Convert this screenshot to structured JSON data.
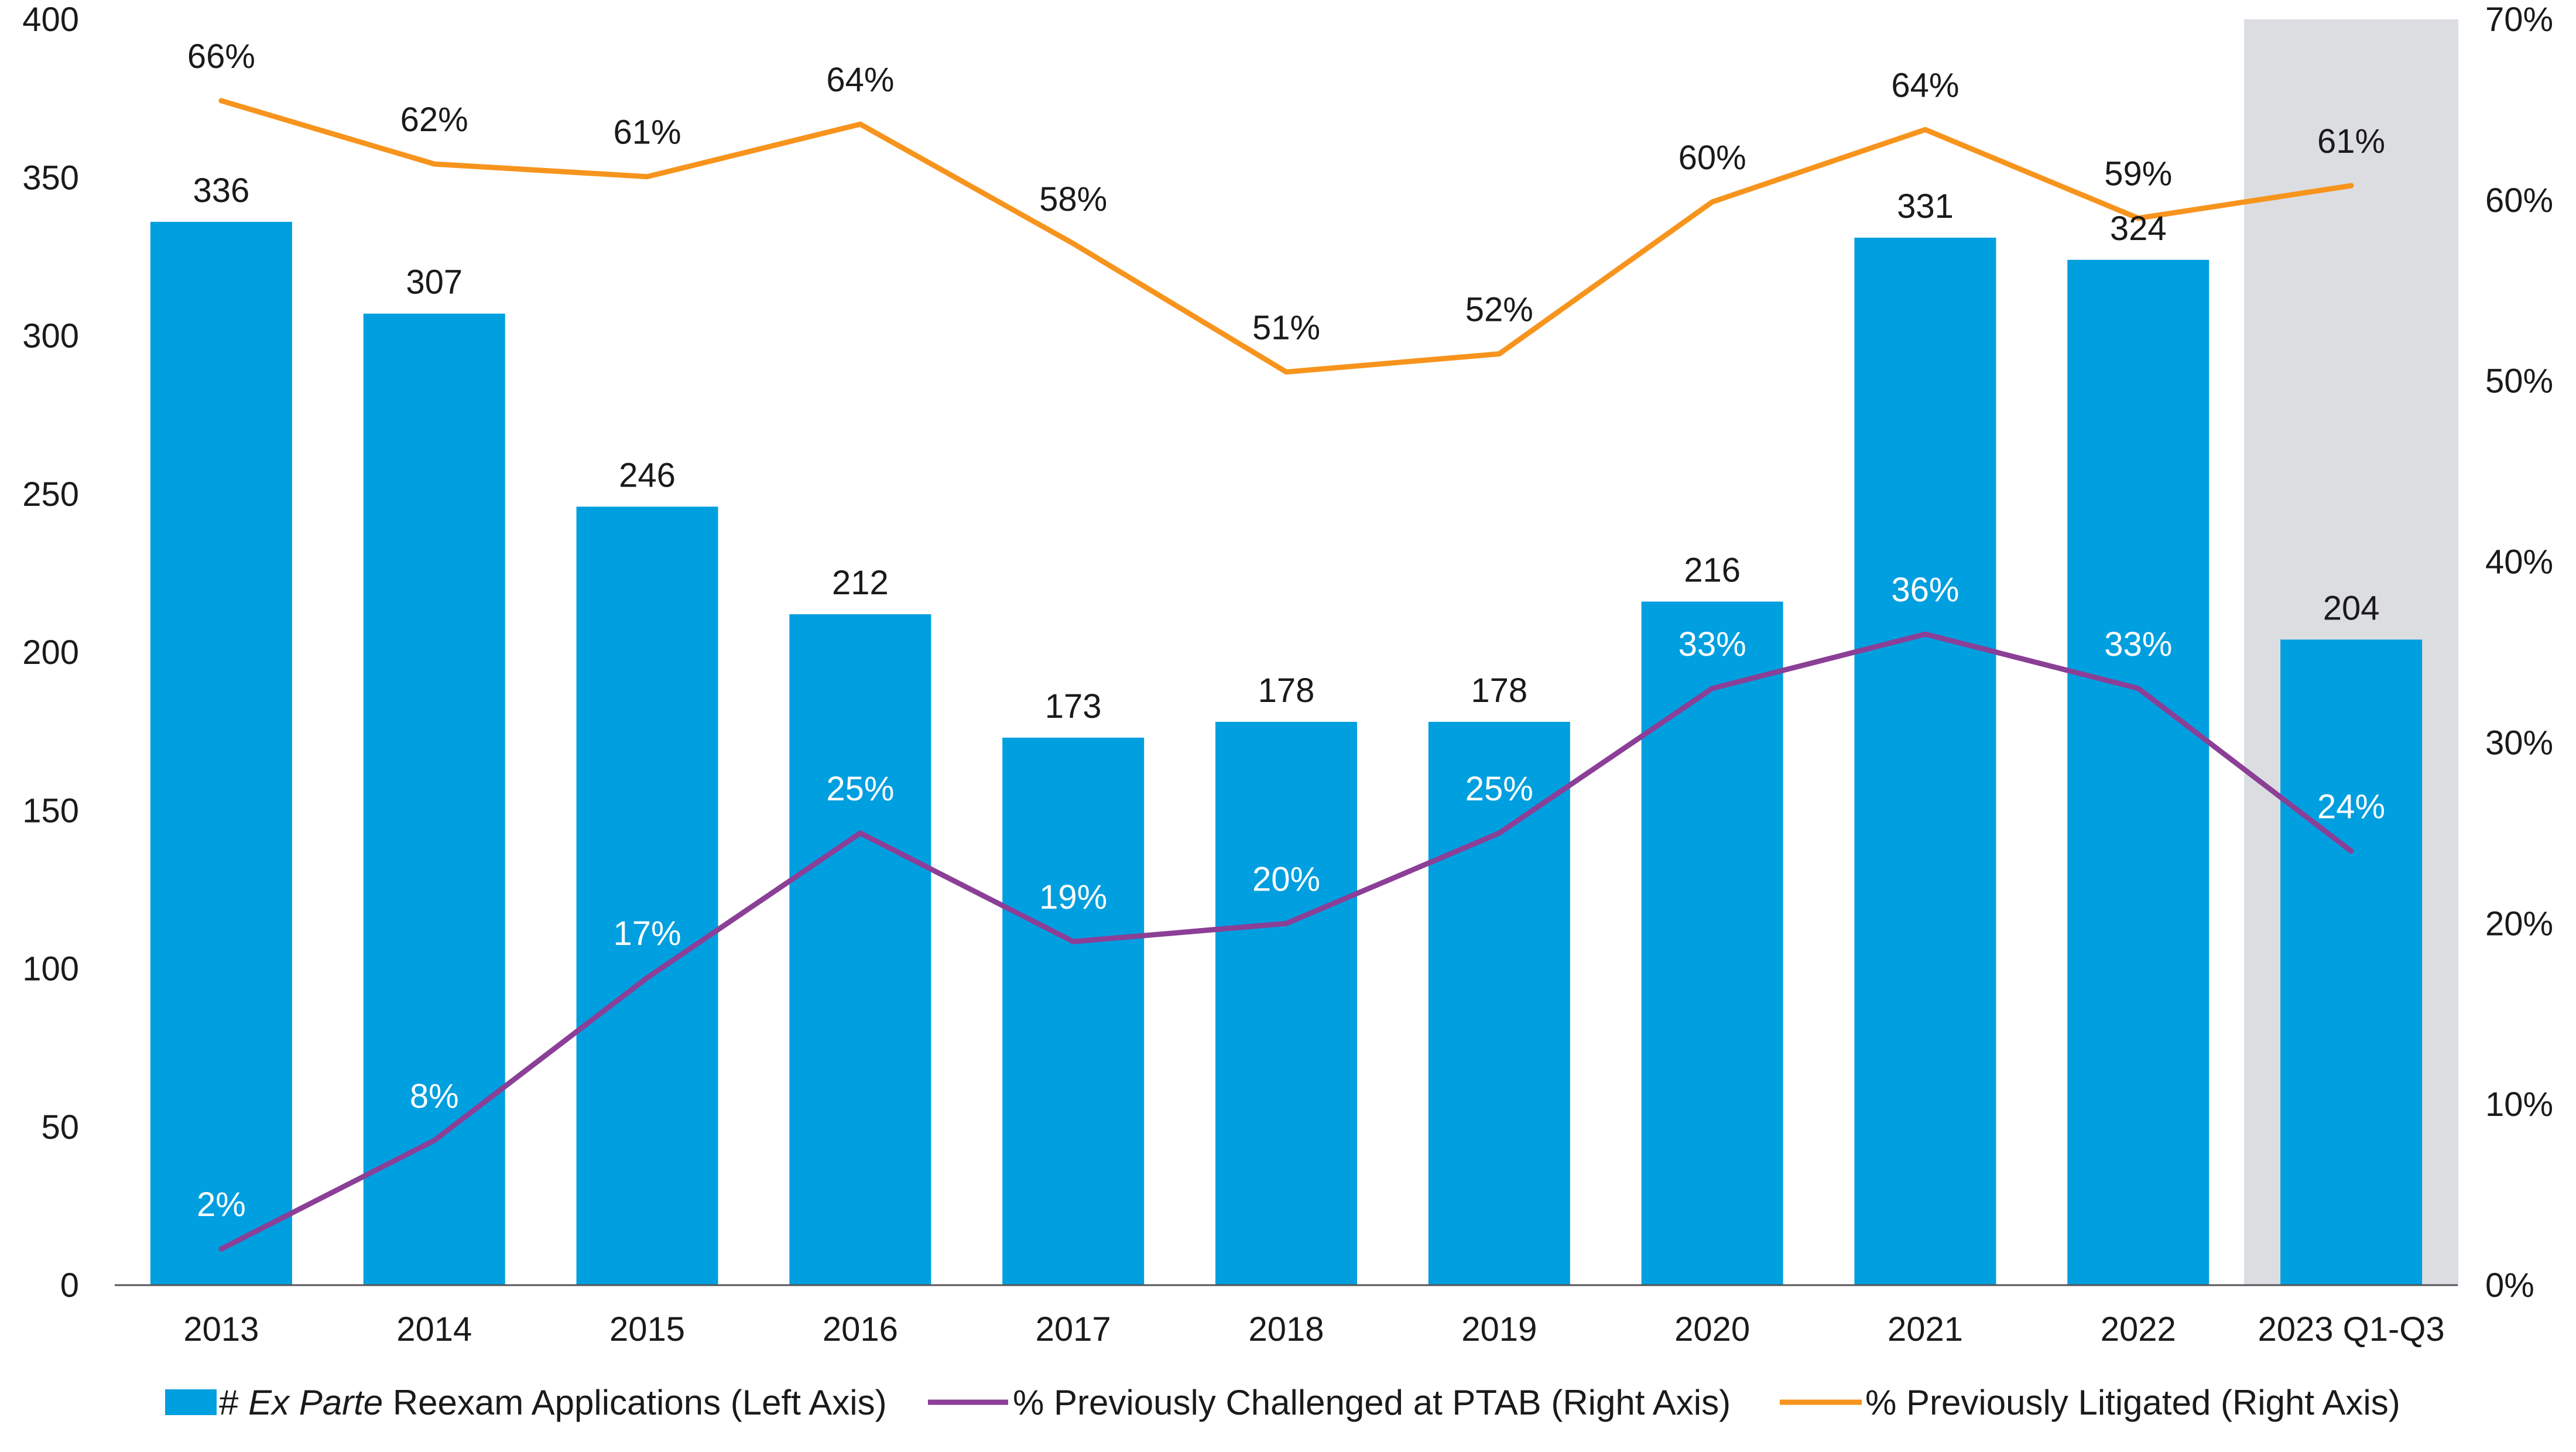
{
  "chart_data": {
    "type": "bar",
    "categories": [
      "2013",
      "2014",
      "2015",
      "2016",
      "2017",
      "2018",
      "2019",
      "2020",
      "2021",
      "2022",
      "2023 Q1-Q3"
    ],
    "highlighted_category": "2023 Q1-Q3",
    "left_axis": {
      "ylim": [
        0,
        400
      ],
      "ticks": [
        "0",
        "50",
        "100",
        "150",
        "200",
        "250",
        "300",
        "350",
        "400"
      ]
    },
    "right_axis": {
      "ylim": [
        0,
        70
      ],
      "ticks": [
        "0%",
        "10%",
        "20%",
        "30%",
        "40%",
        "50%",
        "60%",
        "70%"
      ]
    },
    "grid": false,
    "legend_position": "bottom",
    "series": [
      {
        "name": "# Ex Parte Reexam Applications (Left Axis)",
        "name_parts": [
          "# ",
          "Ex Parte",
          " Reexam Applications (Left Axis)"
        ],
        "type": "bar",
        "axis": "left",
        "color": "#009fdf",
        "values": [
          336,
          307,
          246,
          212,
          173,
          178,
          178,
          216,
          331,
          324,
          204
        ],
        "labels": [
          "336",
          "307",
          "246",
          "212",
          "173",
          "178",
          "178",
          "216",
          "331",
          "324",
          "204"
        ]
      },
      {
        "name": "% Previously Challenged at PTAB (Right Axis)",
        "type": "line",
        "axis": "right",
        "color": "#8b3f96",
        "values": [
          2,
          8,
          17,
          25,
          19,
          20,
          25,
          33,
          36,
          33,
          24
        ],
        "labels": [
          "2%",
          "8%",
          "17%",
          "25%",
          "19%",
          "20%",
          "25%",
          "33%",
          "36%",
          "33%",
          "24%"
        ]
      },
      {
        "name": "% Previously Litigated (Right Axis)",
        "type": "line",
        "axis": "right",
        "color": "#f7941d",
        "values": [
          65.5,
          62,
          61.3,
          64.2,
          57.6,
          50.5,
          51.5,
          59.9,
          63.9,
          59,
          60.8
        ],
        "labels": [
          "66%",
          "62%",
          "61%",
          "64%",
          "58%",
          "51%",
          "52%",
          "60%",
          "64%",
          "59%",
          "61%"
        ]
      }
    ],
    "colors": {
      "highlight_band": "#dcdde1",
      "axis_line": "#555555",
      "label_on_bar": "#ffffff",
      "label_default": "#1a1a1a"
    }
  }
}
